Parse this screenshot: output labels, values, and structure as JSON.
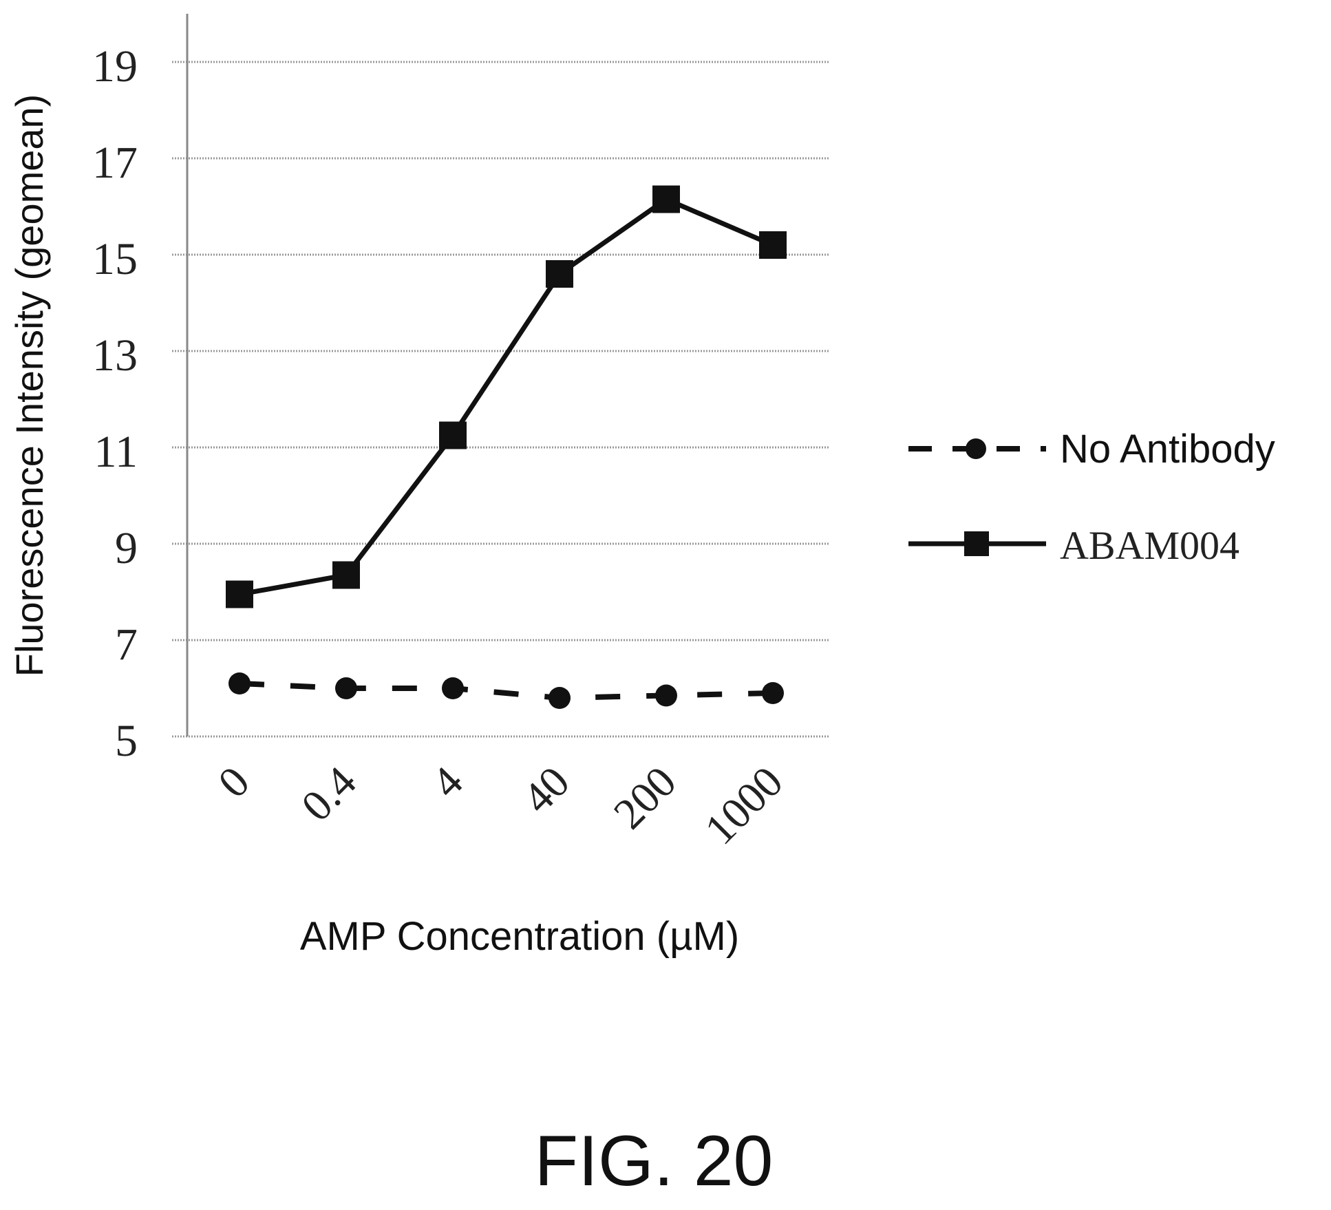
{
  "chart_data": {
    "type": "line",
    "categories": [
      "0",
      "0.4",
      "4",
      "40",
      "200",
      "1000"
    ],
    "series": [
      {
        "name": "No Antibody",
        "values": [
          6.1,
          6.0,
          6.0,
          5.8,
          5.85,
          5.9
        ],
        "line_style": "dashed",
        "marker": "circle",
        "color": "#111111"
      },
      {
        "name": "ABAM004",
        "values": [
          7.95,
          8.35,
          11.25,
          14.6,
          16.15,
          15.2
        ],
        "line_style": "solid",
        "marker": "square",
        "color": "#111111"
      }
    ],
    "title": "",
    "xlabel": "AMP Concentration (µM)",
    "ylabel": "Fluorescence Intensity (geomean)",
    "ylim": [
      5,
      19
    ],
    "yticks": [
      "5",
      "7",
      "9",
      "11",
      "13",
      "15",
      "17",
      "19"
    ],
    "grid": true,
    "legend_position": "right"
  },
  "figure_label": "FIG. 20"
}
